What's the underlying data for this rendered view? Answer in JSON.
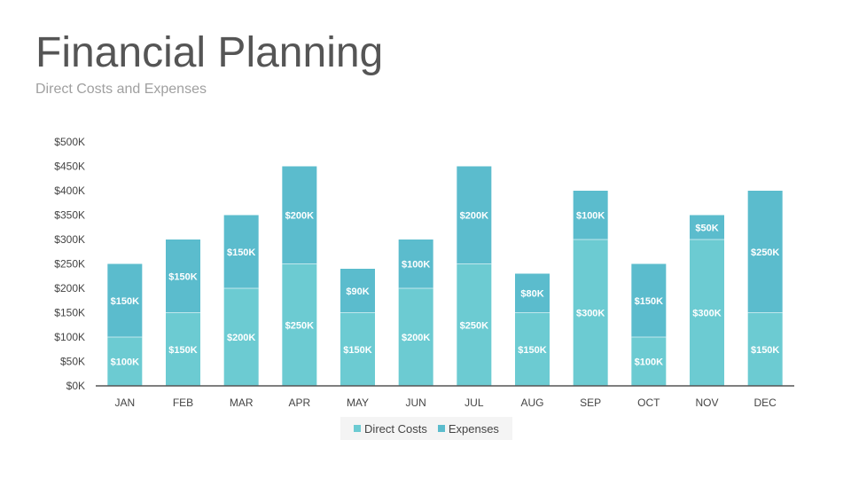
{
  "header": {
    "title": "Financial Planning",
    "subtitle": "Direct Costs and Expenses"
  },
  "colors": {
    "direct_costs": "#6ccbd2",
    "expenses": "#5bbccd",
    "axis": "#555555"
  },
  "chart_data": {
    "type": "bar",
    "stacked": true,
    "title": "",
    "xlabel": "",
    "ylabel": "",
    "ylim": [
      0,
      500
    ],
    "yticks": [
      0,
      50,
      100,
      150,
      200,
      250,
      300,
      350,
      400,
      450,
      500
    ],
    "ytick_labels": [
      "$0K",
      "$50K",
      "$100K",
      "$150K",
      "$200K",
      "$250K",
      "$300K",
      "$350K",
      "$400K",
      "$450K",
      "$500K"
    ],
    "categories": [
      "JAN",
      "FEB",
      "MAR",
      "APR",
      "MAY",
      "JUN",
      "JUL",
      "AUG",
      "SEP",
      "OCT",
      "NOV",
      "DEC"
    ],
    "series": [
      {
        "name": "Direct Costs",
        "values": [
          100,
          150,
          200,
          250,
          150,
          200,
          250,
          150,
          300,
          100,
          300,
          150
        ],
        "labels": [
          "$100K",
          "$150K",
          "$200K",
          "$250K",
          "$150K",
          "$200K",
          "$250K",
          "$150K",
          "$300K",
          "$100K",
          "$300K",
          "$150K"
        ]
      },
      {
        "name": "Expenses",
        "values": [
          150,
          150,
          150,
          200,
          90,
          100,
          200,
          80,
          100,
          150,
          50,
          250
        ],
        "labels": [
          "$150K",
          "$150K",
          "$150K",
          "$200K",
          "$90K",
          "$100K",
          "$200K",
          "$80K",
          "$100K",
          "$150K",
          "$50K",
          "$250K"
        ]
      }
    ],
    "grid": false,
    "legend_position": "bottom"
  }
}
